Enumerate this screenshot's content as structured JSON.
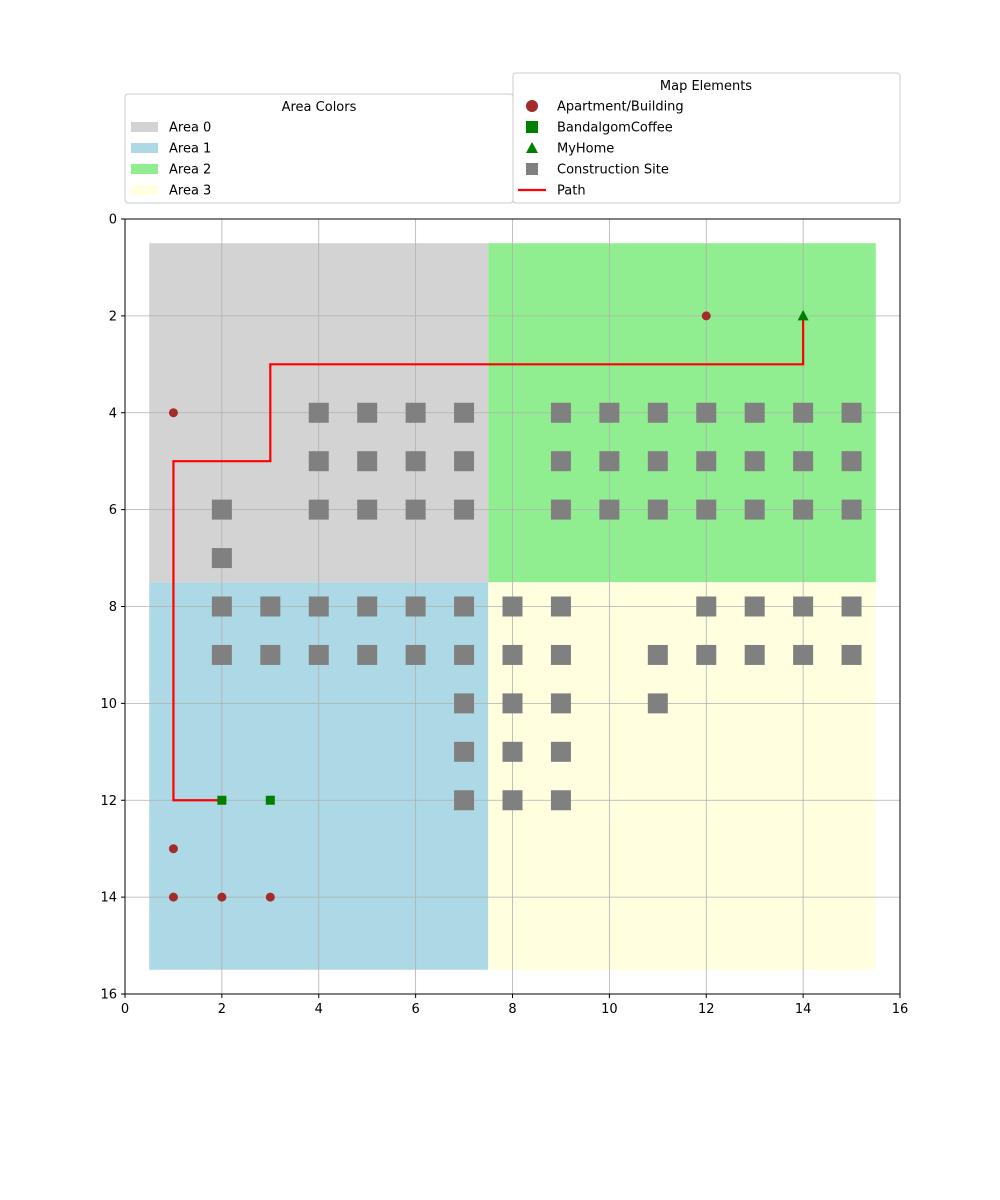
{
  "chart_data": {
    "type": "scatter",
    "title": "",
    "xlabel": "",
    "ylabel": "",
    "xlim": [
      0,
      16
    ],
    "ylim": [
      16,
      0
    ],
    "y_inverted": true,
    "grid": true,
    "xticks": [
      0,
      2,
      4,
      6,
      8,
      10,
      12,
      14,
      16
    ],
    "yticks": [
      0,
      2,
      4,
      6,
      8,
      10,
      12,
      14,
      16
    ],
    "areas": [
      {
        "name": "Area 0",
        "color": "#d3d3d3",
        "x": [
          0.5,
          7.5
        ],
        "y": [
          0.5,
          7.5
        ]
      },
      {
        "name": "Area 1",
        "color": "#add8e6",
        "x": [
          0.5,
          7.5
        ],
        "y": [
          7.5,
          15.5
        ]
      },
      {
        "name": "Area 2",
        "color": "#90ee90",
        "x": [
          7.5,
          15.5
        ],
        "y": [
          0.5,
          7.5
        ]
      },
      {
        "name": "Area 3",
        "color": "#ffffe0",
        "x": [
          7.5,
          15.5
        ],
        "y": [
          7.5,
          15.5
        ]
      }
    ],
    "construction_sites": [
      [
        4,
        4
      ],
      [
        5,
        4
      ],
      [
        6,
        4
      ],
      [
        7,
        4
      ],
      [
        9,
        4
      ],
      [
        10,
        4
      ],
      [
        11,
        4
      ],
      [
        12,
        4
      ],
      [
        13,
        4
      ],
      [
        14,
        4
      ],
      [
        15,
        4
      ],
      [
        4,
        5
      ],
      [
        5,
        5
      ],
      [
        6,
        5
      ],
      [
        7,
        5
      ],
      [
        9,
        5
      ],
      [
        10,
        5
      ],
      [
        11,
        5
      ],
      [
        12,
        5
      ],
      [
        13,
        5
      ],
      [
        14,
        5
      ],
      [
        15,
        5
      ],
      [
        2,
        6
      ],
      [
        4,
        6
      ],
      [
        5,
        6
      ],
      [
        6,
        6
      ],
      [
        7,
        6
      ],
      [
        9,
        6
      ],
      [
        10,
        6
      ],
      [
        11,
        6
      ],
      [
        12,
        6
      ],
      [
        13,
        6
      ],
      [
        14,
        6
      ],
      [
        15,
        6
      ],
      [
        2,
        7
      ],
      [
        2,
        8
      ],
      [
        3,
        8
      ],
      [
        4,
        8
      ],
      [
        5,
        8
      ],
      [
        6,
        8
      ],
      [
        7,
        8
      ],
      [
        8,
        8
      ],
      [
        9,
        8
      ],
      [
        12,
        8
      ],
      [
        13,
        8
      ],
      [
        14,
        8
      ],
      [
        15,
        8
      ],
      [
        2,
        9
      ],
      [
        3,
        9
      ],
      [
        4,
        9
      ],
      [
        5,
        9
      ],
      [
        6,
        9
      ],
      [
        7,
        9
      ],
      [
        8,
        9
      ],
      [
        9,
        9
      ],
      [
        11,
        9
      ],
      [
        12,
        9
      ],
      [
        13,
        9
      ],
      [
        14,
        9
      ],
      [
        15,
        9
      ],
      [
        7,
        10
      ],
      [
        8,
        10
      ],
      [
        9,
        10
      ],
      [
        11,
        10
      ],
      [
        7,
        11
      ],
      [
        8,
        11
      ],
      [
        9,
        11
      ],
      [
        7,
        12
      ],
      [
        8,
        12
      ],
      [
        9,
        12
      ]
    ],
    "apartments": [
      [
        12,
        2
      ],
      [
        1,
        4
      ],
      [
        1,
        13
      ],
      [
        1,
        14
      ],
      [
        2,
        14
      ],
      [
        3,
        14
      ]
    ],
    "coffee": [
      [
        2,
        12
      ],
      [
        3,
        12
      ]
    ],
    "home": [
      [
        14,
        2
      ]
    ],
    "path": [
      [
        2,
        12
      ],
      [
        1,
        12
      ],
      [
        1,
        5
      ],
      [
        3,
        5
      ],
      [
        3,
        3
      ],
      [
        14,
        3
      ],
      [
        14,
        2
      ]
    ],
    "legend_areas": {
      "title": "Area Colors",
      "placement": "top-left",
      "items": [
        {
          "label": "Area 0",
          "color": "#d3d3d3"
        },
        {
          "label": "Area 1",
          "color": "#add8e6"
        },
        {
          "label": "Area 2",
          "color": "#90ee90"
        },
        {
          "label": "Area 3",
          "color": "#ffffe0"
        }
      ]
    },
    "legend_elements": {
      "title": "Map Elements",
      "placement": "top-right",
      "items": [
        {
          "label": "Apartment/Building",
          "marker": "circle",
          "color": "#a52a2a"
        },
        {
          "label": "BandalgomCoffee",
          "marker": "square",
          "color": "#008000"
        },
        {
          "label": "MyHome",
          "marker": "triangle",
          "color": "#008000"
        },
        {
          "label": "Construction Site",
          "marker": "square",
          "color": "#808080"
        },
        {
          "label": "Path",
          "marker": "line",
          "color": "#ff0000"
        }
      ]
    }
  }
}
